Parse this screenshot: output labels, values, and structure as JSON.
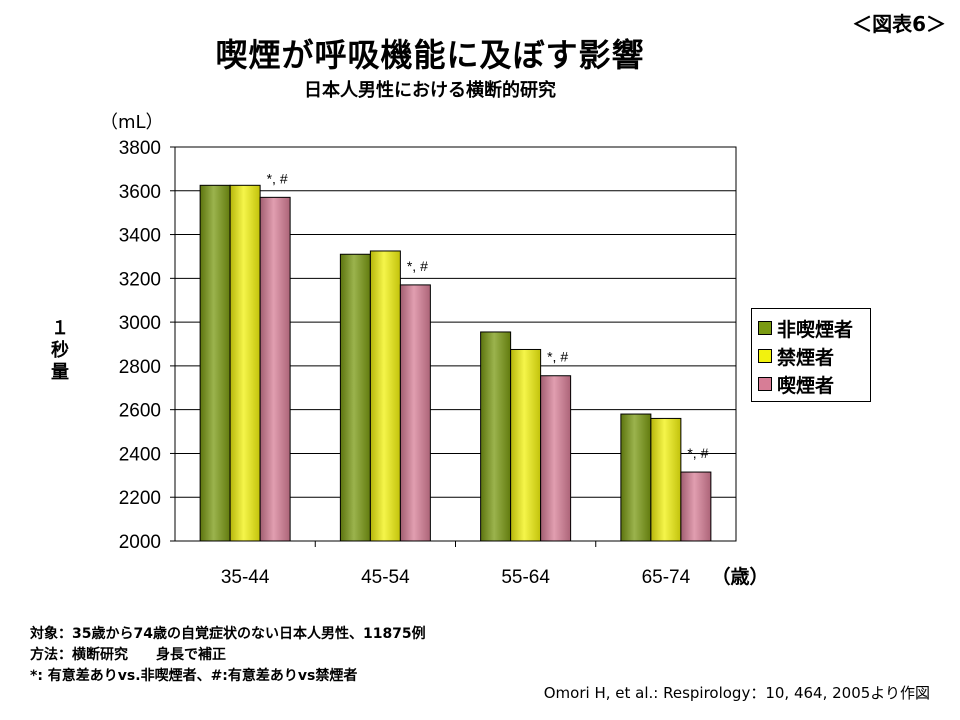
{
  "figure_label": "＜図表6＞",
  "chart_data": {
    "type": "bar",
    "title": "喫煙が呼吸機能に及ぼす影響",
    "subtitle": "日本人男性における横断的研究",
    "ylabel": "１秒量",
    "yunit": "（mL）",
    "xunit": "（歳）",
    "categories": [
      "35-44",
      "45-54",
      "55-64",
      "65-74"
    ],
    "ylim": [
      2000,
      3800
    ],
    "yticks": [
      2000,
      2200,
      2400,
      2600,
      2800,
      3000,
      3200,
      3400,
      3600,
      3800
    ],
    "grid": true,
    "legend_position": "right",
    "series": [
      {
        "name": "非喫煙者",
        "color": "#7a9a12",
        "values": [
          3625,
          3310,
          2955,
          2580
        ]
      },
      {
        "name": "禁煙者",
        "color": "#f2f20e",
        "values": [
          3625,
          3325,
          2875,
          2560
        ]
      },
      {
        "name": "喫煙者",
        "color": "#d77d96",
        "values": [
          3570,
          3170,
          2755,
          2315
        ]
      }
    ],
    "annotations": [
      "*, #",
      "*, #",
      "*, #",
      "*, #"
    ]
  },
  "notes": [
    "対象：35歳から74歳の自覚症状のない日本人男性、11875例",
    "方法：横断研究　　身長で補正",
    "*: 有意差ありvs.非喫煙者、#:有意差ありvs禁煙者"
  ],
  "citation": "Omori H, et al.: Respirology：10, 464, 2005より作図"
}
